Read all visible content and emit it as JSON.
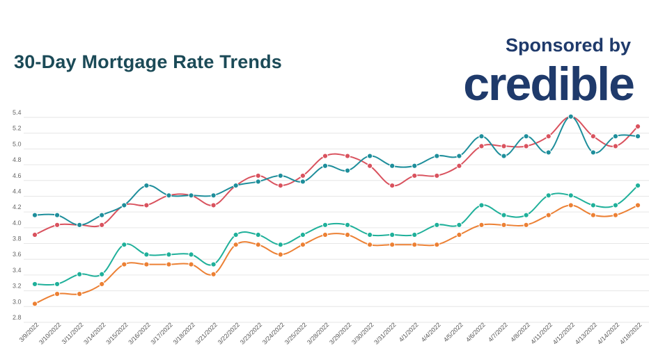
{
  "header": {
    "sponsor_text": "Sponsored by",
    "brand_logo": "credible"
  },
  "colors": {
    "title": "#1b4a57",
    "brand": "#1f3a6b",
    "grid": "#e6e6e6"
  },
  "chart_data": {
    "type": "line",
    "title": "30-Day Mortgage Rate Trends",
    "xlabel": "",
    "ylabel": "",
    "ylim": [
      2.8,
      5.4
    ],
    "yticks": [
      "2.8",
      "3.0",
      "3.2",
      "3.4",
      "3.6",
      "3.8",
      "4.0",
      "4.2",
      "4.4",
      "4.6",
      "4.8",
      "5.0",
      "5.2",
      "5.4"
    ],
    "grid": true,
    "legend": "none",
    "categories": [
      "3/9/2022",
      "3/10/2022",
      "3/11/2022",
      "3/14/2022",
      "3/15/2022",
      "3/16/2022",
      "3/17/2022",
      "3/18/2022",
      "3/21/2022",
      "3/22/2022",
      "3/23/2022",
      "3/24/2022",
      "3/25/2022",
      "3/28/2022",
      "3/29/2022",
      "3/30/2022",
      "3/31/2022",
      "4/1/2022",
      "4/4/2022",
      "4/5/2022",
      "4/6/2022",
      "4/7/2022",
      "4/8/2022",
      "4/11/2022",
      "4/12/2022",
      "4/13/2022",
      "4/14/2022",
      "4/18/2022"
    ],
    "series": [
      {
        "color": "#d9525e",
        "values": [
          3.875,
          4.0,
          4.0,
          4.0,
          4.25,
          4.25,
          4.375,
          4.375,
          4.25,
          4.5,
          4.625,
          4.5,
          4.625,
          4.875,
          4.875,
          4.75,
          4.5,
          4.625,
          4.625,
          4.75,
          5.0,
          5.0,
          5.0,
          5.125,
          5.375,
          5.125,
          5.0,
          5.25
        ]
      },
      {
        "color": "#1e8e9b",
        "values": [
          4.125,
          4.125,
          4.0,
          4.125,
          4.25,
          4.5,
          4.375,
          4.375,
          4.375,
          4.5,
          4.55,
          4.625,
          4.55,
          4.75,
          4.69,
          4.875,
          4.75,
          4.75,
          4.875,
          4.875,
          5.125,
          4.875,
          5.125,
          4.92,
          5.375,
          4.92,
          5.125,
          5.125
        ]
      },
      {
        "color": "#1fb09a",
        "values": [
          3.25,
          3.25,
          3.375,
          3.375,
          3.75,
          3.625,
          3.625,
          3.625,
          3.5,
          3.875,
          3.875,
          3.75,
          3.875,
          4.0,
          4.0,
          3.875,
          3.875,
          3.875,
          4.0,
          4.0,
          4.25,
          4.125,
          4.125,
          4.375,
          4.375,
          4.25,
          4.25,
          4.5
        ]
      },
      {
        "color": "#ec8034",
        "values": [
          3.0,
          3.125,
          3.125,
          3.25,
          3.5,
          3.5,
          3.5,
          3.5,
          3.375,
          3.75,
          3.75,
          3.625,
          3.75,
          3.875,
          3.875,
          3.75,
          3.75,
          3.75,
          3.75,
          3.875,
          4.0,
          4.0,
          4.0,
          4.125,
          4.25,
          4.125,
          4.125,
          4.25
        ]
      }
    ]
  }
}
